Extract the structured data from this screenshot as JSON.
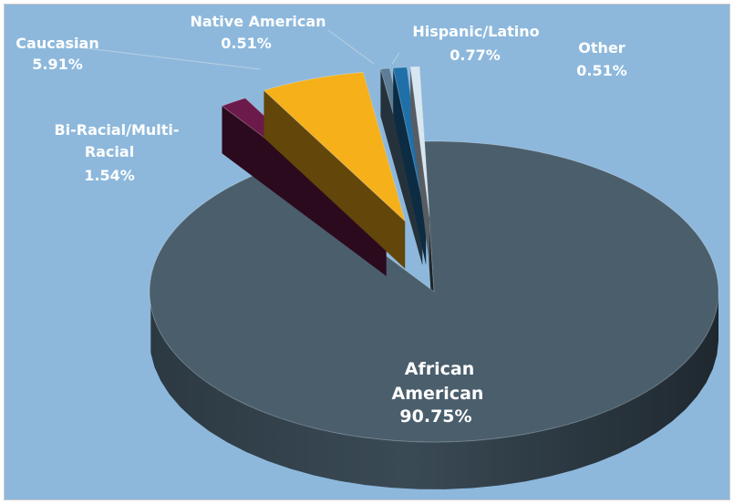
{
  "chart_data": {
    "type": "pie",
    "title": "",
    "slices": [
      {
        "label": "African American",
        "value": 90.75,
        "display": "90.75%",
        "color": "#4a5e6c"
      },
      {
        "label": "Bi-Racial/Multi-Racial",
        "value": 1.54,
        "display": "1.54%",
        "color": "#6c1a4b"
      },
      {
        "label": "Caucasian",
        "value": 5.91,
        "display": "5.91%",
        "color": "#f5b01a"
      },
      {
        "label": "Native American",
        "value": 0.51,
        "display": "0.51%",
        "color": "#5c7d95"
      },
      {
        "label": "Hispanic/Latino",
        "value": 0.77,
        "display": "0.77%",
        "color": "#1f6fa8"
      },
      {
        "label": "Other",
        "value": 0.51,
        "display": "0.51%",
        "color": "#d7e7f2"
      }
    ],
    "style": "3d-exploded-pie",
    "legend": "none",
    "background_color": "#8db8dc"
  },
  "labels": {
    "african_line1": "African",
    "african_line2": "American",
    "african_value": "90.75%",
    "biracial_line1": "Bi-Racial/Multi-",
    "biracial_line2": "Racial",
    "biracial_value": "1.54%",
    "caucasian_name": "Caucasian",
    "caucasian_value": "5.91%",
    "native_name": "Native American",
    "native_value": "0.51%",
    "hispanic_name": "Hispanic/Latino",
    "hispanic_value": "0.77%",
    "other_name": "Other",
    "other_value": "0.51%"
  }
}
